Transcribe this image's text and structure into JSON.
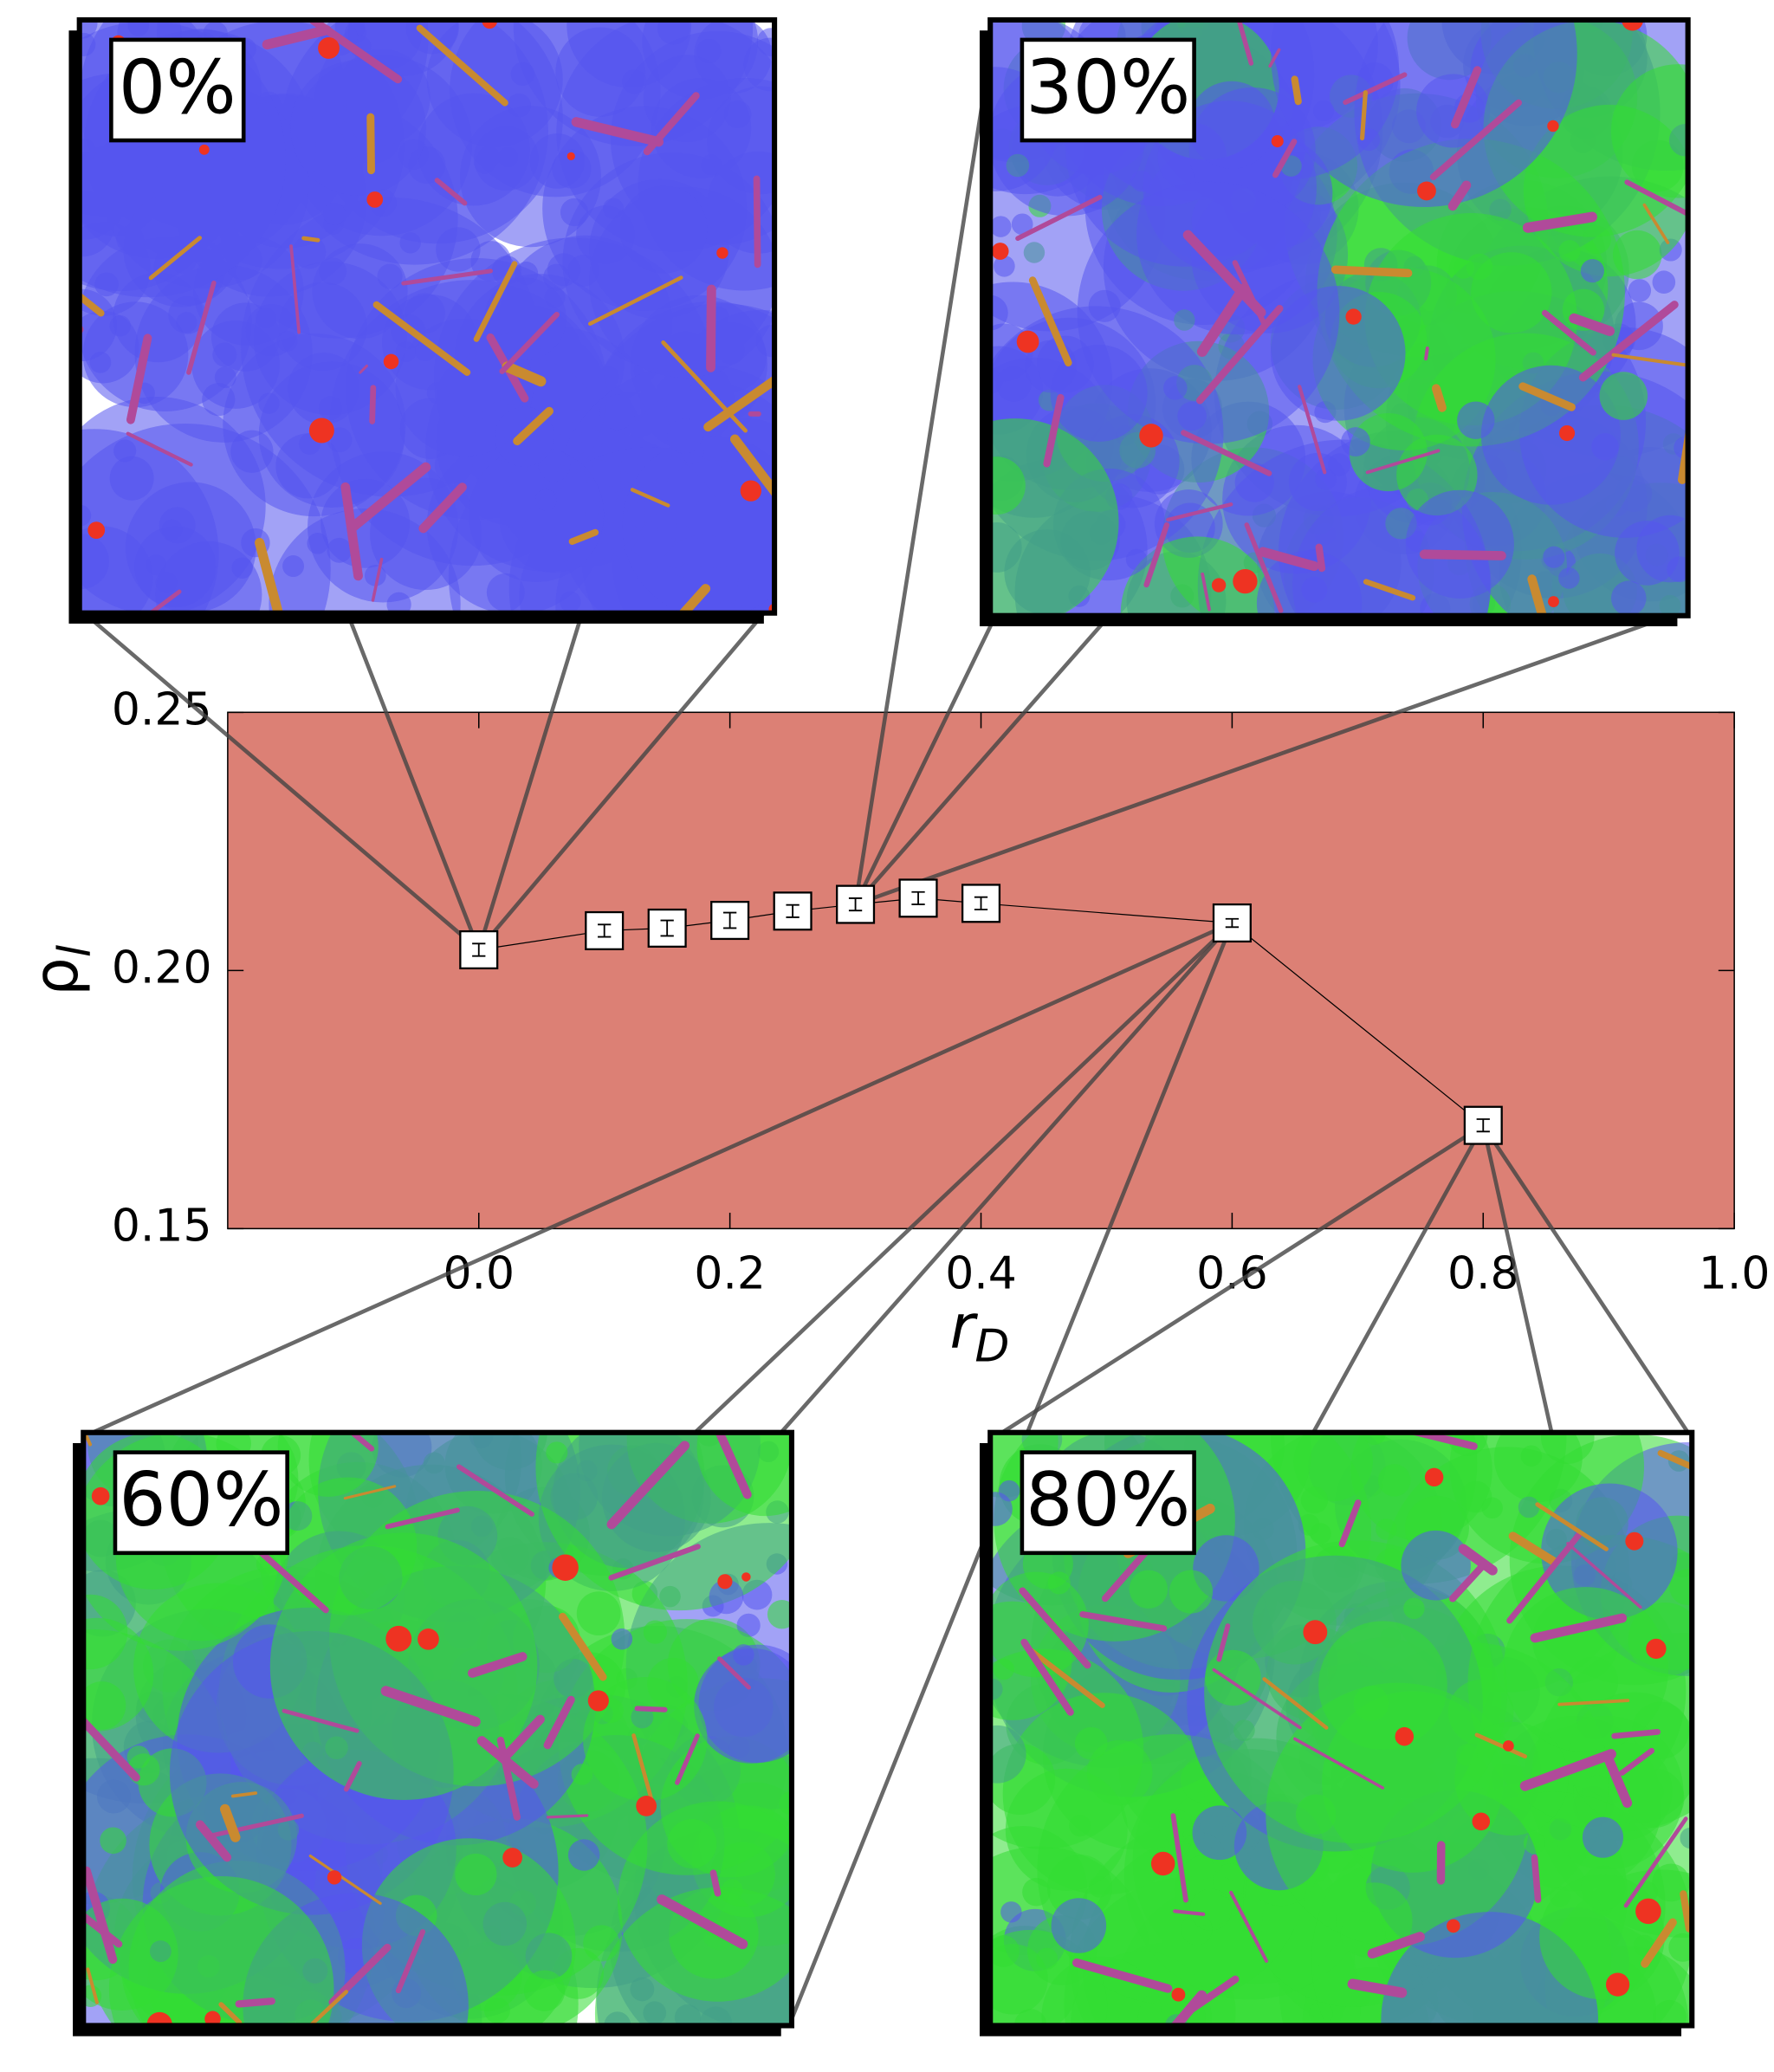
{
  "chart_data": {
    "type": "line",
    "xlabel": "r",
    "xlabel_sub": "D",
    "ylabel": "ρ",
    "ylabel_sub": "l",
    "x": [
      0.0,
      0.1,
      0.15,
      0.2,
      0.25,
      0.3,
      0.35,
      0.4,
      0.6,
      0.8
    ],
    "series": [
      {
        "color": "#000000",
        "values": [
          0.204,
          0.2077,
          0.2082,
          0.2097,
          0.2115,
          0.2128,
          0.214,
          0.213,
          0.2092,
          0.17
        ],
        "errors": [
          0.0012,
          0.0012,
          0.0015,
          0.0015,
          0.0012,
          0.0012,
          0.0012,
          0.0012,
          0.0008,
          0.0012
        ]
      }
    ],
    "xlim": [
      -0.2,
      1.0
    ],
    "xticks": [
      {
        "value": 0.0,
        "label": "0.0"
      },
      0.2,
      0.4,
      0.6,
      0.8,
      {
        "value": 1.0,
        "label": "1.0"
      }
    ],
    "ylim": [
      0.15,
      0.25
    ],
    "yticks": [
      {
        "value": 0.15,
        "label": "0.15"
      },
      {
        "value": 0.2,
        "label": "0.20"
      },
      0.25
    ],
    "background": "#dc8075",
    "insets": [
      {
        "label": "0%"
      },
      {
        "label": "30%"
      },
      {
        "label": "60%"
      },
      {
        "label": "80%"
      }
    ]
  }
}
